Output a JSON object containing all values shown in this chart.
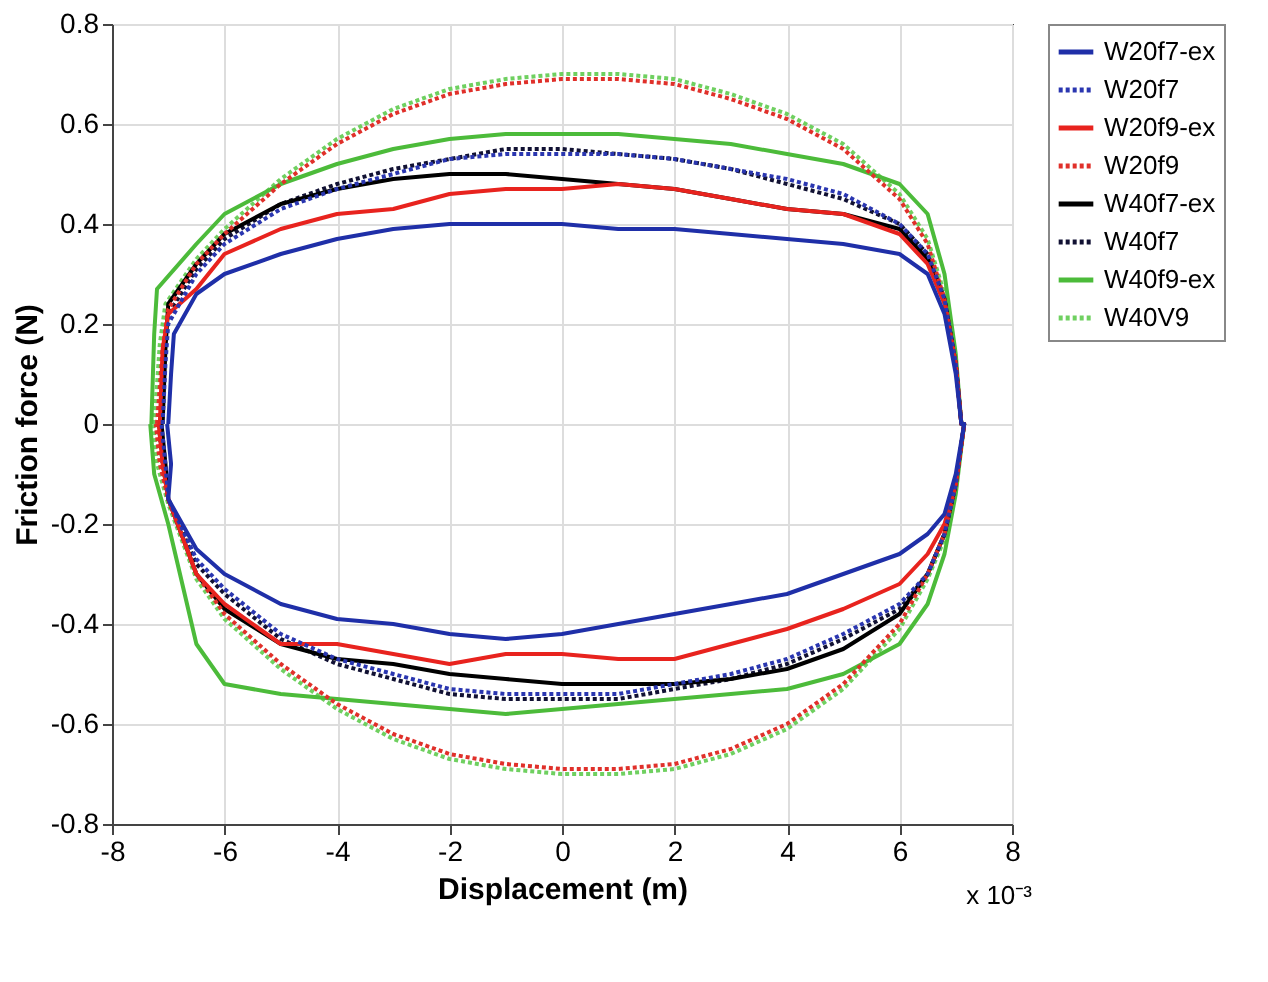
{
  "chart_data": {
    "type": "line",
    "xlabel": "Displacement (m)",
    "ylabel": "Friction force (N)",
    "annotations": [
      "x 10⁻³"
    ],
    "series": [
      {
        "name": "W20f7-ex",
        "color": "#1f2fa8",
        "line_style": "solid",
        "x": [
          -7.0,
          -6.95,
          -6.9,
          -6.5,
          -6,
          -5,
          -4,
          -3,
          -2,
          -1,
          0,
          1,
          2,
          3,
          4,
          5,
          6,
          6.5,
          6.8,
          7,
          7.1,
          7.15,
          7,
          6.8,
          6.5,
          6,
          5,
          4,
          3,
          2,
          1,
          0,
          -1,
          -2,
          -3,
          -4,
          -5,
          -6,
          -6.5,
          -7,
          -6.95,
          -7.02
        ],
        "values": [
          0,
          0.1,
          0.18,
          0.26,
          0.3,
          0.34,
          0.37,
          0.39,
          0.4,
          0.4,
          0.4,
          0.39,
          0.39,
          0.38,
          0.37,
          0.36,
          0.34,
          0.3,
          0.22,
          0.1,
          0,
          0,
          -0.1,
          -0.18,
          -0.22,
          -0.26,
          -0.3,
          -0.34,
          -0.36,
          -0.38,
          -0.4,
          -0.42,
          -0.43,
          -0.42,
          -0.4,
          -0.39,
          -0.36,
          -0.3,
          -0.25,
          -0.15,
          -0.08,
          0
        ]
      },
      {
        "name": "W20f7",
        "color": "#2a36b0",
        "line_style": "dotted",
        "x": [
          -7.1,
          -7.05,
          -7.0,
          -6.5,
          -6,
          -5,
          -4,
          -3,
          -2,
          -1,
          0,
          1,
          2,
          3,
          4,
          5,
          6,
          6.5,
          6.8,
          7,
          7.1,
          7.15,
          7,
          6.8,
          6.5,
          6,
          5,
          4,
          3,
          2,
          1,
          0,
          -1,
          -2,
          -3,
          -4,
          -5,
          -6,
          -6.5,
          -7,
          -7.05,
          -7.12
        ],
        "values": [
          0,
          0.12,
          0.2,
          0.3,
          0.36,
          0.43,
          0.47,
          0.5,
          0.53,
          0.54,
          0.54,
          0.54,
          0.53,
          0.51,
          0.49,
          0.46,
          0.4,
          0.34,
          0.25,
          0.12,
          0,
          0,
          -0.12,
          -0.22,
          -0.3,
          -0.36,
          -0.42,
          -0.47,
          -0.5,
          -0.52,
          -0.54,
          -0.54,
          -0.54,
          -0.53,
          -0.5,
          -0.47,
          -0.42,
          -0.33,
          -0.27,
          -0.15,
          -0.08,
          0
        ]
      },
      {
        "name": "W20f9-ex",
        "color": "#e8231e",
        "line_style": "solid",
        "x": [
          -7.15,
          -7.1,
          -7.0,
          -6.5,
          -6,
          -5,
          -4,
          -3,
          -2,
          -1,
          0,
          1,
          2,
          3,
          4,
          5,
          6,
          6.5,
          6.8,
          7,
          7.1,
          7.15,
          7,
          6.8,
          6.5,
          6,
          5,
          4,
          3,
          2,
          1,
          0,
          -1,
          -2,
          -3,
          -4,
          -5,
          -6,
          -6.5,
          -7,
          -7.1,
          -7.17
        ],
        "values": [
          0,
          0.15,
          0.22,
          0.27,
          0.34,
          0.39,
          0.42,
          0.43,
          0.46,
          0.47,
          0.47,
          0.48,
          0.47,
          0.45,
          0.43,
          0.42,
          0.38,
          0.32,
          0.24,
          0.12,
          0,
          0,
          -0.12,
          -0.2,
          -0.26,
          -0.32,
          -0.37,
          -0.41,
          -0.44,
          -0.47,
          -0.47,
          -0.46,
          -0.46,
          -0.48,
          -0.46,
          -0.44,
          -0.44,
          -0.36,
          -0.3,
          -0.15,
          -0.08,
          0
        ]
      },
      {
        "name": "W20f9",
        "color": "#e0302a",
        "line_style": "dotted",
        "x": [
          -7.2,
          -7.1,
          -7.0,
          -6.5,
          -6,
          -5,
          -4,
          -3,
          -2,
          -1,
          0,
          1,
          2,
          3,
          4,
          5,
          6,
          6.5,
          6.8,
          7,
          7.1,
          7.15,
          7,
          6.8,
          6.5,
          6,
          5,
          4,
          3,
          2,
          1,
          0,
          -1,
          -2,
          -3,
          -4,
          -5,
          -6,
          -6.5,
          -7,
          -7.15,
          -7.22
        ],
        "values": [
          0,
          0.15,
          0.23,
          0.32,
          0.38,
          0.48,
          0.56,
          0.62,
          0.66,
          0.68,
          0.69,
          0.69,
          0.68,
          0.65,
          0.61,
          0.55,
          0.45,
          0.36,
          0.25,
          0.12,
          0,
          0,
          -0.12,
          -0.22,
          -0.3,
          -0.4,
          -0.52,
          -0.6,
          -0.65,
          -0.68,
          -0.69,
          -0.69,
          -0.68,
          -0.66,
          -0.62,
          -0.56,
          -0.48,
          -0.38,
          -0.3,
          -0.15,
          -0.08,
          0
        ]
      },
      {
        "name": "W40f7-ex",
        "color": "#000000",
        "line_style": "solid",
        "x": [
          -7.1,
          -7.05,
          -7.0,
          -6.5,
          -6,
          -5,
          -4,
          -3,
          -2,
          -1,
          0,
          1,
          2,
          3,
          4,
          5,
          6,
          6.5,
          6.8,
          7,
          7.1,
          7.15,
          7,
          6.8,
          6.5,
          6,
          5,
          4,
          3,
          2,
          1,
          0,
          -1,
          -2,
          -3,
          -4,
          -5,
          -6,
          -6.5,
          -7,
          -7.05,
          -7.12
        ],
        "values": [
          0,
          0.15,
          0.24,
          0.32,
          0.38,
          0.44,
          0.47,
          0.49,
          0.5,
          0.5,
          0.49,
          0.48,
          0.47,
          0.45,
          0.43,
          0.42,
          0.39,
          0.33,
          0.25,
          0.12,
          0,
          0,
          -0.12,
          -0.22,
          -0.3,
          -0.38,
          -0.45,
          -0.49,
          -0.51,
          -0.52,
          -0.52,
          -0.52,
          -0.51,
          -0.5,
          -0.48,
          -0.47,
          -0.44,
          -0.37,
          -0.3,
          -0.15,
          -0.08,
          0
        ]
      },
      {
        "name": "W40f7",
        "color": "#111133",
        "line_style": "dotted",
        "x": [
          -7.15,
          -7.1,
          -7.0,
          -6.5,
          -6,
          -5,
          -4,
          -3,
          -2,
          -1,
          0,
          1,
          2,
          3,
          4,
          5,
          6,
          6.5,
          6.8,
          7,
          7.1,
          7.15,
          7,
          6.8,
          6.5,
          6,
          5,
          4,
          3,
          2,
          1,
          0,
          -1,
          -2,
          -3,
          -4,
          -5,
          -6,
          -6.5,
          -7,
          -7.1,
          -7.17
        ],
        "values": [
          0,
          0.13,
          0.22,
          0.31,
          0.37,
          0.44,
          0.48,
          0.51,
          0.53,
          0.55,
          0.55,
          0.54,
          0.53,
          0.51,
          0.48,
          0.45,
          0.4,
          0.34,
          0.25,
          0.12,
          0,
          0,
          -0.12,
          -0.22,
          -0.3,
          -0.37,
          -0.43,
          -0.48,
          -0.51,
          -0.53,
          -0.55,
          -0.55,
          -0.55,
          -0.54,
          -0.51,
          -0.48,
          -0.43,
          -0.34,
          -0.28,
          -0.15,
          -0.08,
          0
        ]
      },
      {
        "name": "W40f9-ex",
        "color": "#4cbb3a",
        "line_style": "solid",
        "x": [
          -7.3,
          -7.25,
          -7.2,
          -6.5,
          -6,
          -5,
          -4,
          -3,
          -2,
          -1,
          0,
          1,
          2,
          3,
          4,
          5,
          6,
          6.5,
          6.8,
          7,
          7.1,
          7.15,
          7,
          6.8,
          6.5,
          6,
          5,
          4,
          3,
          2,
          1,
          0,
          -1,
          -2,
          -3,
          -4,
          -5,
          -6,
          -6.5,
          -7,
          -7.25,
          -7.32
        ],
        "values": [
          0,
          0.18,
          0.27,
          0.36,
          0.42,
          0.48,
          0.52,
          0.55,
          0.57,
          0.58,
          0.58,
          0.58,
          0.57,
          0.56,
          0.54,
          0.52,
          0.48,
          0.42,
          0.3,
          0.14,
          0,
          0,
          -0.14,
          -0.26,
          -0.36,
          -0.44,
          -0.5,
          -0.53,
          -0.54,
          -0.55,
          -0.56,
          -0.57,
          -0.58,
          -0.57,
          -0.56,
          -0.55,
          -0.54,
          -0.52,
          -0.44,
          -0.2,
          -0.1,
          0
        ]
      },
      {
        "name": "W40V9",
        "color": "#6fd060",
        "line_style": "dotted",
        "x": [
          -7.25,
          -7.15,
          -7.05,
          -6.5,
          -6,
          -5,
          -4,
          -3,
          -2,
          -1,
          0,
          1,
          2,
          3,
          4,
          5,
          6,
          6.5,
          6.8,
          7,
          7.1,
          7.15,
          7,
          6.8,
          6.5,
          6,
          5,
          4,
          3,
          2,
          1,
          0,
          -1,
          -2,
          -3,
          -4,
          -5,
          -6,
          -6.5,
          -7,
          -7.2,
          -7.27
        ],
        "values": [
          0,
          0.16,
          0.24,
          0.33,
          0.39,
          0.49,
          0.57,
          0.63,
          0.67,
          0.69,
          0.7,
          0.7,
          0.69,
          0.66,
          0.62,
          0.56,
          0.46,
          0.37,
          0.26,
          0.12,
          0,
          0,
          -0.12,
          -0.23,
          -0.31,
          -0.41,
          -0.53,
          -0.61,
          -0.66,
          -0.69,
          -0.7,
          -0.7,
          -0.69,
          -0.67,
          -0.63,
          -0.57,
          -0.49,
          -0.39,
          -0.31,
          -0.16,
          -0.08,
          0
        ]
      }
    ],
    "xlim": [
      -8,
      8
    ],
    "xticks": [
      -8,
      -6,
      -4,
      -2,
      0,
      2,
      4,
      6,
      8
    ],
    "ylim": [
      -0.8,
      0.8
    ],
    "yticks": [
      -0.8,
      -0.6,
      -0.4,
      -0.2,
      0,
      0.2,
      0.4,
      0.6,
      0.8
    ],
    "grid": true,
    "legend": "right"
  }
}
